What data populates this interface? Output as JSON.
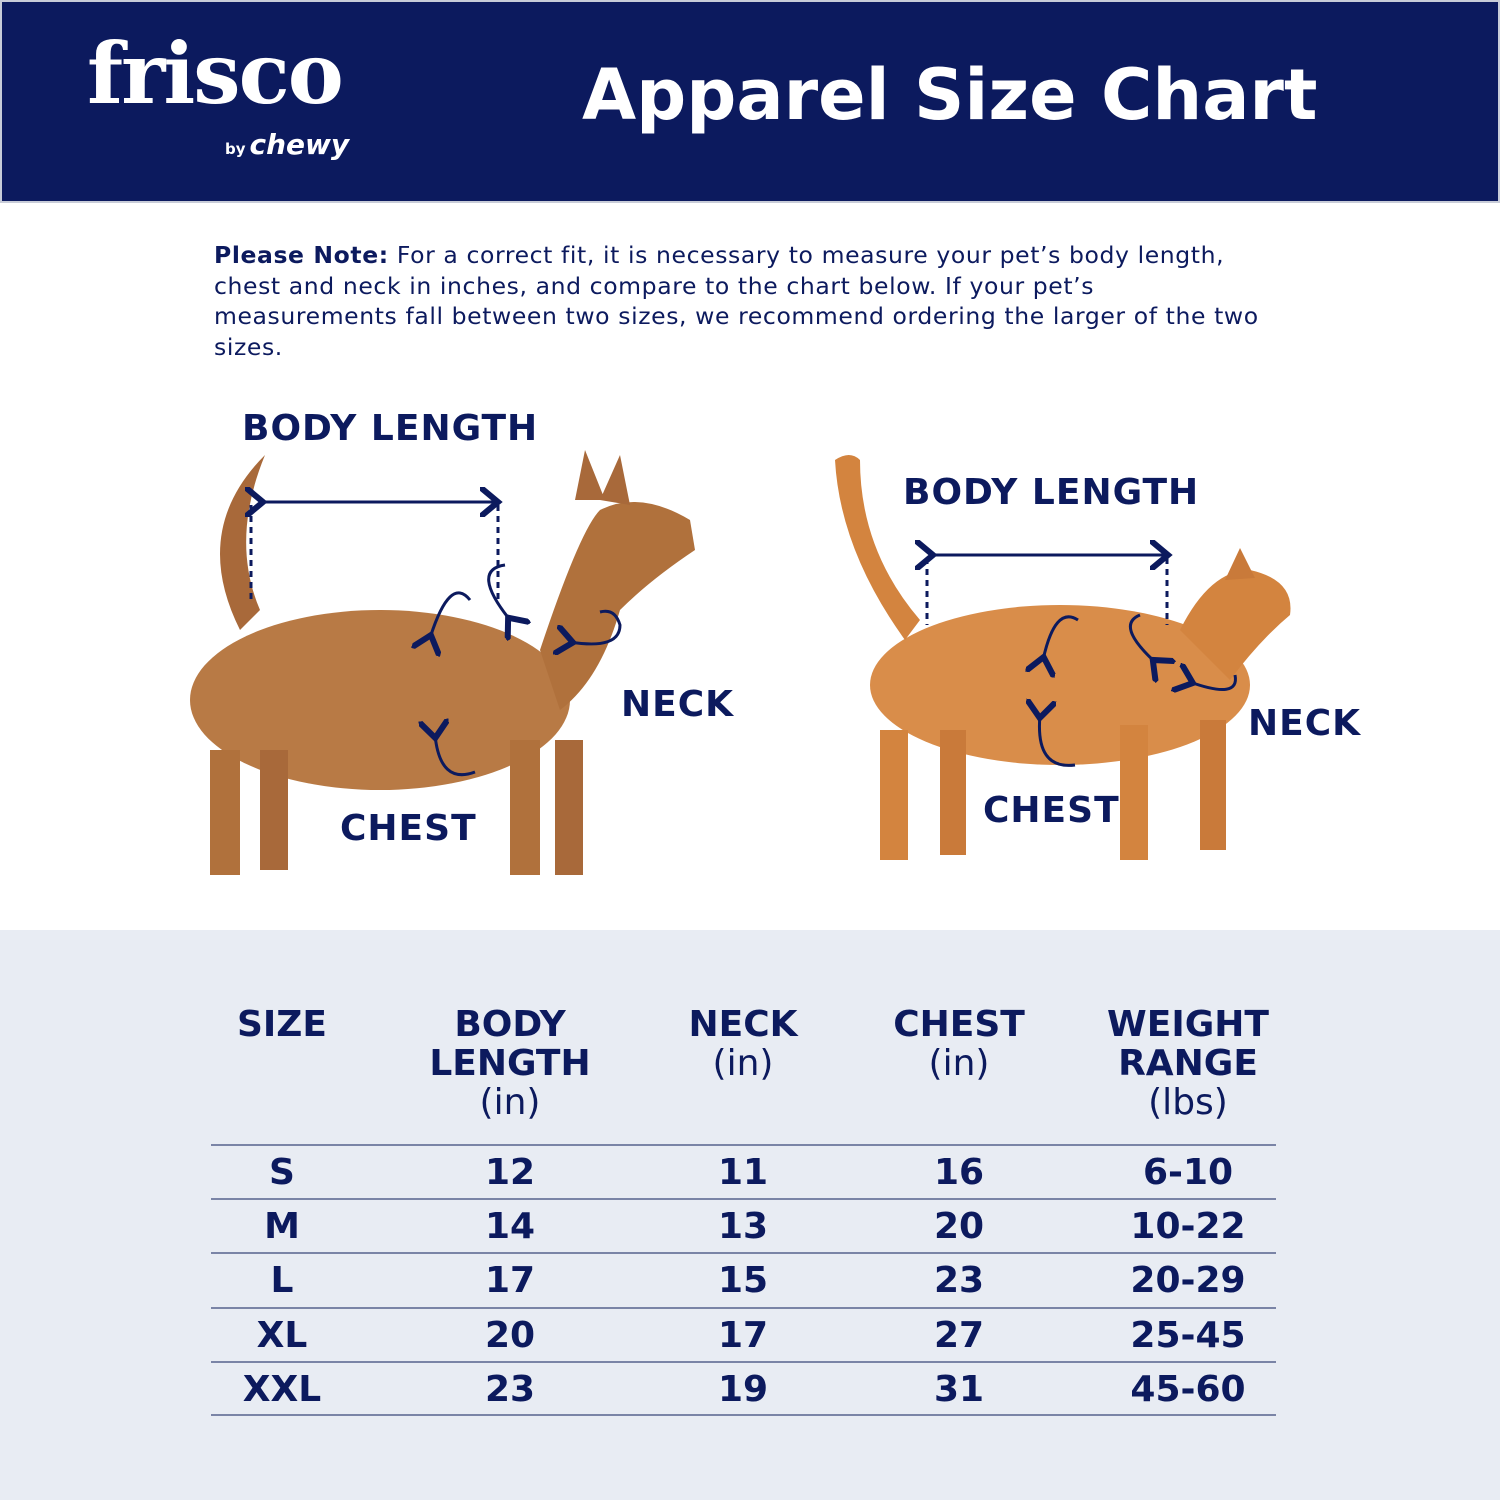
{
  "brand": {
    "name": "frisco",
    "sub_by": "by",
    "sub": "chewy"
  },
  "header": {
    "title": "Apparel Size Chart"
  },
  "note": {
    "label": "Please Note:",
    "text": " For a correct fit, it is necessary to measure your pet’s body length, chest and neck in inches, and compare to the chart below. If your pet’s measurements fall between two sizes, we recommend ordering the larger of the two sizes."
  },
  "diagram": {
    "dog": {
      "body_length": "BODY LENGTH",
      "neck": "NECK",
      "chest": "CHEST"
    },
    "cat": {
      "body_length": "BODY LENGTH",
      "neck": "NECK",
      "chest": "CHEST"
    }
  },
  "colors": {
    "navy": "#0c1a5e",
    "table_bg": "#e8ecf3"
  },
  "table": {
    "headers": [
      {
        "title": "SIZE",
        "unit": ""
      },
      {
        "title": "BODY LENGTH",
        "unit": "(in)"
      },
      {
        "title": "NECK",
        "unit": "(in)"
      },
      {
        "title": "CHEST",
        "unit": "(in)"
      },
      {
        "title": "WEIGHT RANGE",
        "unit": "(lbs)"
      }
    ],
    "rows": [
      [
        "S",
        "12",
        "11",
        "16",
        "6-10"
      ],
      [
        "M",
        "14",
        "13",
        "20",
        "10-22"
      ],
      [
        "L",
        "17",
        "15",
        "23",
        "20-29"
      ],
      [
        "XL",
        "20",
        "17",
        "27",
        "25-45"
      ],
      [
        "XXL",
        "23",
        "19",
        "31",
        "45-60"
      ]
    ]
  }
}
